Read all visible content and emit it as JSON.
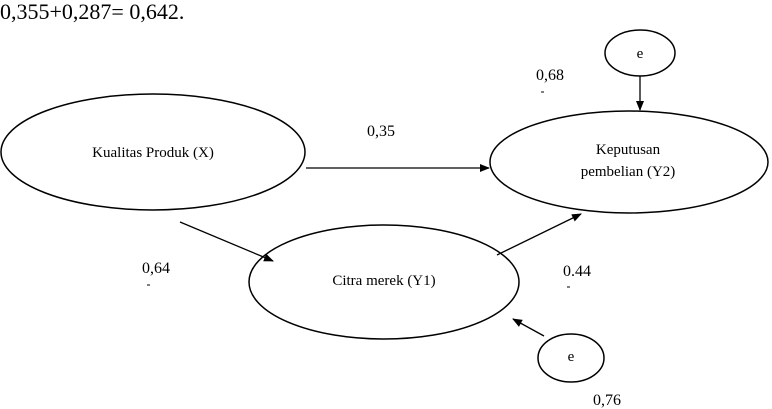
{
  "equation_text": "0,355+0,287= 0,642.",
  "nodes": {
    "x": {
      "label": "Kualitas Produk (X)"
    },
    "y1": {
      "label": "Citra merek (Y1)"
    },
    "y2": {
      "label_line1": "Keputusan",
      "label_line2": "pembelian (Y2)"
    },
    "e_top": {
      "label": "e"
    },
    "e_bottom": {
      "label": "e"
    }
  },
  "coefficients": {
    "x_to_y2": "0,35",
    "x_to_y1": "0,64",
    "y1_to_y2": "0.44",
    "e_top_value": "0,68",
    "e_bottom_value": "0,76"
  }
}
